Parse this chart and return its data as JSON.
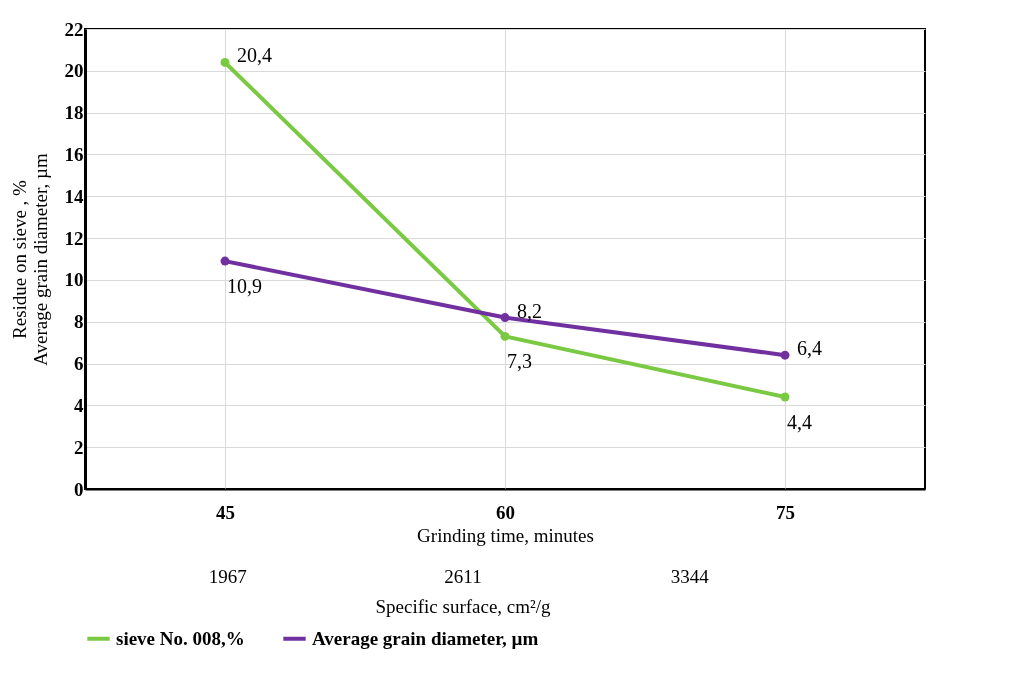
{
  "chart_data": {
    "type": "line",
    "xlabel": "Grinding time, minutes",
    "ylabel": "Residue on sieve , %\nAverage grain diameter, µm",
    "categories": [
      "45",
      "60",
      "75"
    ],
    "series": [
      {
        "name": "sieve No. 008,%",
        "color": "#7ac943",
        "values": [
          20.4,
          7.3,
          4.4
        ],
        "value_labels": [
          "20,4",
          "7,3",
          "4,4"
        ]
      },
      {
        "name": "Average grain diameter, µm",
        "color": "#7030a0",
        "values": [
          10.9,
          8.2,
          6.4
        ],
        "value_labels": [
          "10,9",
          "8,2",
          "6,4"
        ]
      }
    ],
    "ylim": [
      0,
      22
    ],
    "yticks": [
      0,
      2,
      4,
      6,
      8,
      10,
      12,
      14,
      16,
      18,
      20,
      22
    ],
    "grid": true,
    "legend": "bottom",
    "marker": "circle",
    "annotations": [
      "1967",
      "2611",
      "3344",
      "Specific surface, cm²/g"
    ]
  }
}
